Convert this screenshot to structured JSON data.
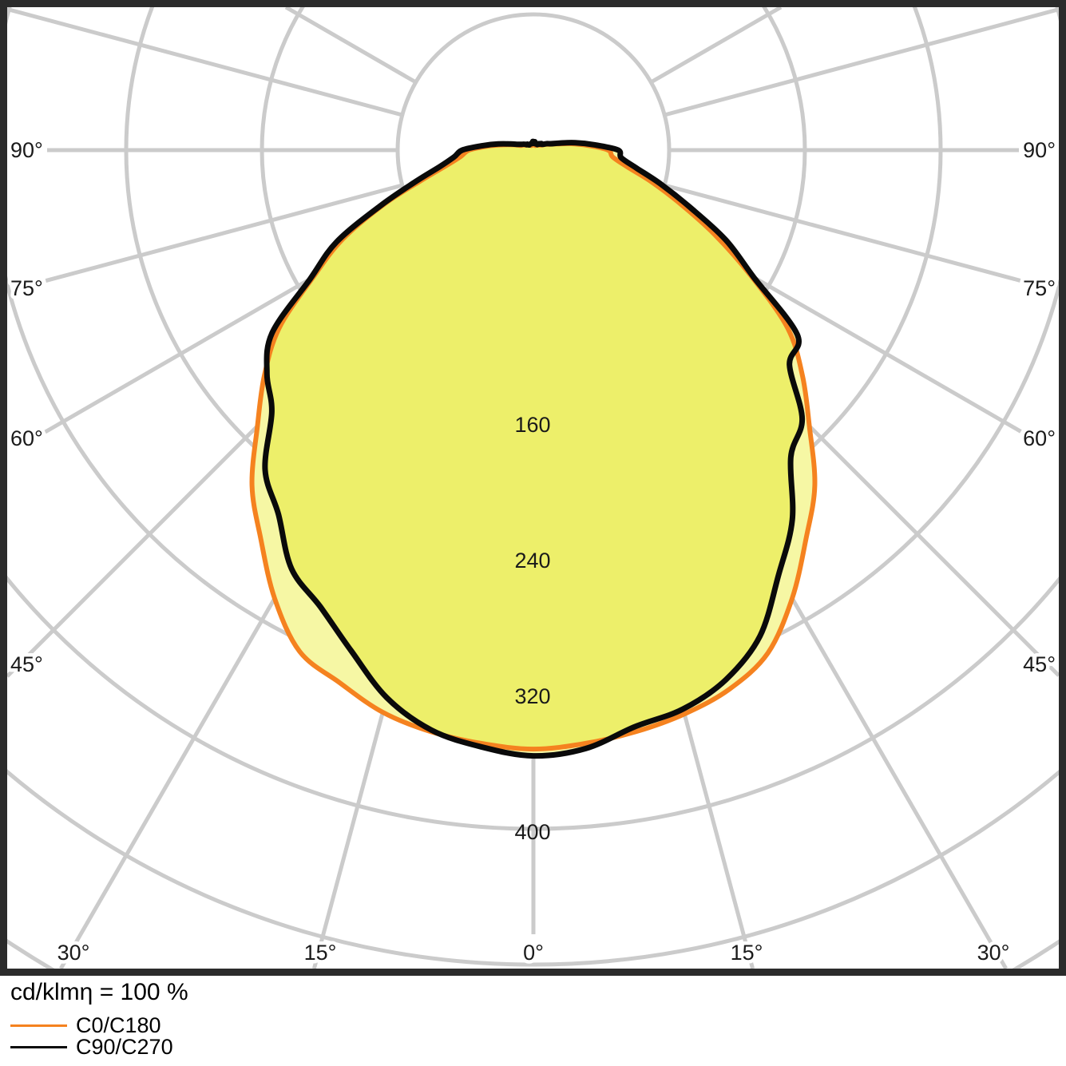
{
  "legend": {
    "title": "cd/klmη = 100 %",
    "entries": [
      {
        "label": "C0/C180",
        "color": "#f5821f"
      },
      {
        "label": "C90/C270",
        "color": "#0a0a0a"
      }
    ]
  },
  "chart_data": {
    "type": "polar",
    "subtype": "photometric-luminous-intensity-distribution",
    "title": "cd/klmη = 100 %",
    "radial_unit": "cd/klm",
    "gamma_deg": [
      0,
      5,
      10,
      15,
      20,
      25,
      30,
      35,
      40,
      45,
      50,
      55,
      60,
      65,
      70,
      75,
      80,
      85,
      90,
      95,
      100,
      105,
      110,
      115,
      120,
      125,
      130,
      135,
      140,
      145,
      150,
      155,
      160,
      165,
      170,
      175,
      180
    ],
    "series": [
      {
        "name": "C0/C180",
        "color": "#f5821f",
        "stroke_width": 6,
        "right_cd_per_klm": [
          353,
          351,
          348,
          344,
          338,
          327,
          305,
          280,
          258,
          230,
          207,
          183,
          148,
          118,
          92,
          72,
          56,
          47,
          44,
          32,
          22,
          14,
          10,
          8,
          6,
          5,
          5,
          4,
          4,
          4,
          4,
          3,
          3,
          3,
          3,
          3,
          3
        ],
        "left_cd_per_klm": [
          353,
          351,
          348,
          343,
          334,
          326,
          305,
          280,
          258,
          230,
          207,
          183,
          150,
          124,
          94,
          68,
          52,
          43,
          38,
          27,
          18,
          12,
          8,
          7,
          6,
          5,
          5,
          4,
          4,
          4,
          4,
          3,
          3,
          3,
          3,
          3,
          3
        ]
      },
      {
        "name": "C90/C270",
        "color": "#0a0a0a",
        "stroke_width": 7,
        "right_cd_per_klm": [
          357,
          354,
          345,
          341,
          332,
          316,
          289,
          266,
          236,
          224,
          197,
          190,
          150,
          125,
          98,
          78,
          62,
          52,
          50,
          36,
          25,
          16,
          11,
          9,
          7,
          6,
          6,
          5,
          5,
          4,
          4,
          4,
          4,
          4,
          5,
          4,
          5
        ],
        "left_cd_per_klm": [
          357,
          353,
          347,
          334,
          314,
          297,
          285,
          262,
          246,
          218,
          205,
          188,
          152,
          128,
          96,
          72,
          56,
          47,
          42,
          30,
          21,
          14,
          10,
          8,
          7,
          6,
          5,
          5,
          4,
          4,
          4,
          4,
          4,
          4,
          4,
          5,
          5
        ]
      }
    ],
    "radial_grid_ticks": [
      80,
      160,
      240,
      320,
      400,
      480,
      560
    ],
    "radial_tick_labels": [
      160,
      240,
      320,
      400
    ],
    "angle_rays_deg": [
      0,
      15,
      30,
      45,
      60,
      75,
      90,
      105,
      120
    ],
    "angle_labels": {
      "left": [
        "90°",
        "75°",
        "60°",
        "45°"
      ],
      "right": [
        "90°",
        "75°",
        "60°",
        "45°"
      ],
      "bottom": [
        "30°",
        "15°",
        "0°",
        "15°",
        "30°"
      ]
    },
    "style": {
      "grid_color": "#cbcbcb",
      "fill_color": "#f6f7a4",
      "frame_color": "#2b2b2b",
      "label_color": "#1a1a1a",
      "legend_position": "bottom-left"
    }
  }
}
